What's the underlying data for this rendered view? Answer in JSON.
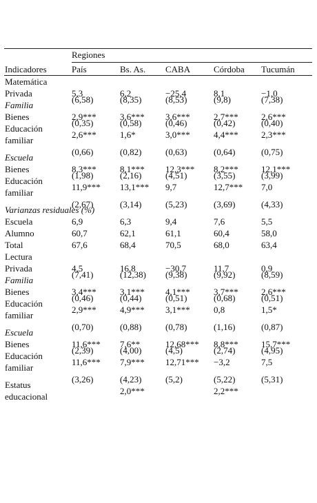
{
  "header": {
    "group": "Regiones",
    "columns": [
      "Indicadores",
      "País",
      "Bs. As.",
      "CABA",
      "Córdoba",
      "Tucumán"
    ]
  },
  "rows": [
    {
      "section": "Matemática"
    },
    {
      "label": "Privada",
      "values": [
        "5,3",
        "6,2",
        "−25,4",
        "8,1",
        "−1,0"
      ]
    },
    {
      "values": [
        "(6,58)",
        "(8,35)",
        "(8,53)",
        "(9,8)",
        "(7,38)"
      ]
    },
    {
      "group": "Familia"
    },
    {
      "label": "Bienes",
      "values": [
        "2,9***",
        "3,6***",
        "3,6***",
        "2,7***",
        "2,6***"
      ]
    },
    {
      "values": [
        "(0,35)",
        "(0,58)",
        "(0,46)",
        "(0,42)",
        "(0,40)"
      ]
    },
    {
      "label": "Educación familiar",
      "values": [
        "2,6***",
        "1,6*",
        "3,0***",
        "4,4***",
        "2,3***"
      ]
    },
    {
      "values": [
        "(0,66)",
        "(0,82)",
        "(0,63)",
        "(0,64)",
        "(0,75)"
      ]
    },
    {
      "group": "Escuela"
    },
    {
      "label": "Bienes",
      "values": [
        "8,3***",
        "8,1***",
        "12,3***",
        "8,2***",
        "12,1***"
      ]
    },
    {
      "values": [
        "(1,98)",
        "(2,16)",
        "(4,51)",
        "(3,55)",
        "(3,99)"
      ]
    },
    {
      "label": "Educación familiar",
      "values": [
        "11,9***",
        "13,1***",
        "9,7",
        "12,7***",
        "7,0"
      ]
    },
    {
      "values": [
        "(2,67)",
        "(3,14)",
        "(5,23)",
        "(3,69)",
        "(4,33)"
      ]
    },
    {
      "group": "Varianzas residuales (%)"
    },
    {
      "label": "Escuela",
      "values": [
        "6,9",
        "6,3",
        "9,4",
        "7,6",
        "5,5"
      ]
    },
    {
      "label": "Alumno",
      "values": [
        "60,7",
        "62,1",
        "61,1",
        "60,4",
        "58,0"
      ]
    },
    {
      "label": "Total",
      "values": [
        "67,6",
        "68,4",
        "70,5",
        "68,0",
        "63,4"
      ]
    },
    {
      "section": "Lectura"
    },
    {
      "label": "Privada",
      "values": [
        "4,5",
        "16,8",
        "−30,7",
        "11,7",
        "0,9"
      ]
    },
    {
      "values": [
        "(7,41)",
        "(12,38)",
        "(9,38)",
        "(9,92)",
        "(8,59)"
      ]
    },
    {
      "group": "Familia"
    },
    {
      "label": "Bienes",
      "values": [
        "3,4***",
        "3,1***",
        "4,1***",
        "3,7***",
        "2,6***"
      ]
    },
    {
      "values": [
        "(0,46)",
        "(0,44)",
        "(0,51)",
        "(0,68)",
        "(0,51)"
      ]
    },
    {
      "label": "Educación familiar",
      "values": [
        "2,9***",
        "4,9***",
        "3,1***",
        "0,8",
        "1,5*"
      ]
    },
    {
      "values": [
        "(0,70)",
        "(0,88)",
        "(0,78)",
        "(1,16)",
        "(0,87)"
      ]
    },
    {
      "group": "Escuela"
    },
    {
      "label": "Bienes",
      "values": [
        "11,6***",
        "7,6**",
        "12,68***",
        "8,8***",
        "15,7***"
      ]
    },
    {
      "values": [
        "(2,39)",
        "(4,00)",
        "(4,5)",
        "(2,74)",
        "(4,95)"
      ]
    },
    {
      "label": "Educación familiar",
      "values": [
        "11,6***",
        "7,9***",
        "12,71***",
        "−3,2",
        "7,5"
      ]
    },
    {
      "values": [
        "(3,26)",
        "(4,23)",
        "(5,2)",
        "(5,22)",
        "(5,31)"
      ]
    },
    {
      "label": "Estatus educacional",
      "values": [
        null,
        "2,0***",
        null,
        "2,2***",
        null
      ]
    }
  ]
}
